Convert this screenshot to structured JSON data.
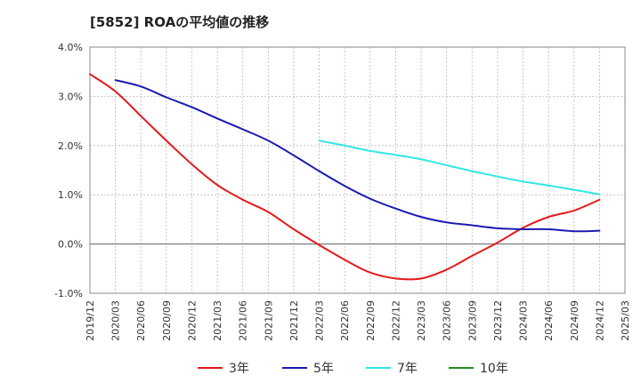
{
  "chart_data": {
    "type": "line",
    "title": "[5852]  ROAの平均値の推移",
    "xlabel": "",
    "ylabel": "",
    "x_ticks": [
      "2019/12",
      "2020/03",
      "2020/06",
      "2020/09",
      "2020/12",
      "2021/03",
      "2021/06",
      "2021/09",
      "2021/12",
      "2022/03",
      "2022/06",
      "2022/09",
      "2022/12",
      "2023/03",
      "2023/06",
      "2023/09",
      "2023/12",
      "2024/03",
      "2024/06",
      "2024/09",
      "2024/12",
      "2025/03"
    ],
    "y_ticks": [
      -1.0,
      0.0,
      1.0,
      2.0,
      3.0,
      4.0
    ],
    "y_tick_labels": [
      "-1.0%",
      "0.0%",
      "1.0%",
      "2.0%",
      "3.0%",
      "4.0%"
    ],
    "ylim": [
      -1.0,
      4.0
    ],
    "grid": true,
    "legend_position": "bottom",
    "series": [
      {
        "name": "3年",
        "color": "#e31a1c",
        "x": [
          "2019/12",
          "2020/03",
          "2020/06",
          "2020/09",
          "2020/12",
          "2021/03",
          "2021/06",
          "2021/09",
          "2021/12",
          "2022/03",
          "2022/06",
          "2022/09",
          "2022/12",
          "2023/03",
          "2023/06",
          "2023/09",
          "2023/12",
          "2024/03",
          "2024/06",
          "2024/09",
          "2024/12"
        ],
        "values": [
          3.45,
          3.1,
          2.6,
          2.1,
          1.62,
          1.2,
          0.9,
          0.65,
          0.3,
          -0.02,
          -0.32,
          -0.58,
          -0.7,
          -0.7,
          -0.52,
          -0.24,
          0.03,
          0.33,
          0.55,
          0.68,
          0.9
        ]
      },
      {
        "name": "5年",
        "color": "#1a1ab3",
        "x": [
          "2020/03",
          "2020/06",
          "2020/09",
          "2020/12",
          "2021/03",
          "2021/06",
          "2021/09",
          "2021/12",
          "2022/03",
          "2022/06",
          "2022/09",
          "2022/12",
          "2023/03",
          "2023/06",
          "2023/09",
          "2023/12",
          "2024/03",
          "2024/06",
          "2024/09",
          "2024/12"
        ],
        "values": [
          3.33,
          3.2,
          2.98,
          2.78,
          2.55,
          2.33,
          2.1,
          1.8,
          1.48,
          1.18,
          0.92,
          0.72,
          0.55,
          0.44,
          0.38,
          0.32,
          0.3,
          0.3,
          0.26,
          0.27
        ]
      },
      {
        "name": "7年",
        "color": "#33e6e6",
        "x": [
          "2022/03",
          "2022/06",
          "2022/09",
          "2022/12",
          "2023/03",
          "2023/06",
          "2023/09",
          "2023/12",
          "2024/03",
          "2024/06",
          "2024/09",
          "2024/12"
        ],
        "values": [
          2.1,
          2.0,
          1.89,
          1.81,
          1.72,
          1.6,
          1.48,
          1.37,
          1.27,
          1.19,
          1.1,
          1.01
        ]
      },
      {
        "name": "10年",
        "color": "#228b22",
        "x": [],
        "values": []
      }
    ]
  }
}
